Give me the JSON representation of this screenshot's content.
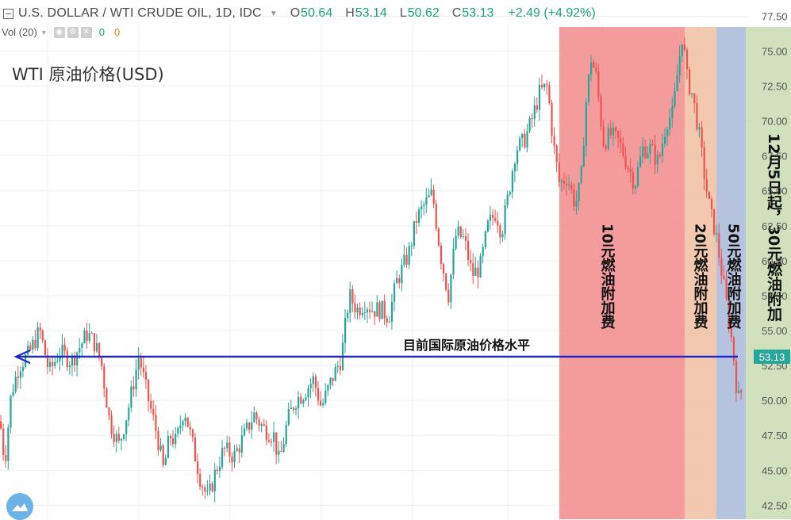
{
  "header": {
    "symbol": "U.S. DOLLAR / WTI CRUDE OIL, 1D, IDC",
    "o_label": "O",
    "o_value": "50.64",
    "h_label": "H",
    "h_value": "53.14",
    "l_label": "L",
    "l_value": "50.62",
    "c_label": "C",
    "c_value": "53.13",
    "change": "+2.49 (+4.92%)"
  },
  "volume": {
    "label": "Vol (20)",
    "v1": "0",
    "v2": "0"
  },
  "chart_title": "WTI 原油价格(USD)",
  "colors": {
    "up": "#26a69a",
    "down": "#ef5350",
    "line": "#1d27c9",
    "zone_10": "#f28b8b",
    "zone_20": "#f0bfa0",
    "zone_50": "#a9b9d9",
    "zone_30": "#c9dbb1",
    "price_tag": "#26a69a"
  },
  "chart_data": {
    "type": "candlestick",
    "title": "WTI 原油价格(USD)",
    "y_ticks": [
      "77.50",
      "75.00",
      "72.50",
      "70.00",
      "67.50",
      "65.00",
      "62.50",
      "60.00",
      "57.50",
      "55.00",
      "52.50",
      "50.00",
      "47.50",
      "45.00",
      "42.50"
    ],
    "ylim": [
      41.5,
      78.2
    ],
    "current_price": "53.13",
    "current_level": 53.13,
    "reference_line_label": "目前国际原油价格水平",
    "zones": [
      {
        "label": "10元燃油附加费",
        "color_key": "zone_10"
      },
      {
        "label": "20元燃油附加费",
        "color_key": "zone_20"
      },
      {
        "label": "50元燃油附加费",
        "color_key": "zone_50"
      },
      {
        "label": "12月5日起，30元燃油附加",
        "color_key": "zone_30"
      }
    ],
    "price_path": [
      [
        0,
        48.5
      ],
      [
        6,
        45.5
      ],
      [
        14,
        50.5
      ],
      [
        24,
        52.5
      ],
      [
        36,
        53.3
      ],
      [
        50,
        55.0
      ],
      [
        62,
        52.0
      ],
      [
        75,
        53.5
      ],
      [
        90,
        52.8
      ],
      [
        110,
        54.8
      ],
      [
        120,
        54.0
      ],
      [
        128,
        52.5
      ],
      [
        138,
        48.5
      ],
      [
        150,
        46.8
      ],
      [
        162,
        49.5
      ],
      [
        175,
        53.2
      ],
      [
        185,
        50.5
      ],
      [
        198,
        47.5
      ],
      [
        206,
        45.0
      ],
      [
        214,
        47.5
      ],
      [
        222,
        47.0
      ],
      [
        232,
        49.5
      ],
      [
        240,
        47.5
      ],
      [
        252,
        44.5
      ],
      [
        262,
        42.9
      ],
      [
        272,
        45.0
      ],
      [
        282,
        46.5
      ],
      [
        295,
        46.0
      ],
      [
        308,
        47.5
      ],
      [
        320,
        49.0
      ],
      [
        332,
        48.0
      ],
      [
        345,
        47.5
      ],
      [
        352,
        45.5
      ],
      [
        362,
        48.5
      ],
      [
        372,
        50.0
      ],
      [
        382,
        50.5
      ],
      [
        395,
        51.5
      ],
      [
        405,
        49.5
      ],
      [
        418,
        51.5
      ],
      [
        430,
        53.0
      ],
      [
        440,
        57.5
      ],
      [
        450,
        56.5
      ],
      [
        460,
        57.0
      ],
      [
        470,
        56.5
      ],
      [
        480,
        56.5
      ],
      [
        490,
        56.0
      ],
      [
        500,
        58.5
      ],
      [
        515,
        60.5
      ],
      [
        525,
        63.0
      ],
      [
        535,
        64.0
      ],
      [
        545,
        64.8
      ],
      [
        555,
        60.5
      ],
      [
        565,
        57.5
      ],
      [
        575,
        62.0
      ],
      [
        585,
        61.5
      ],
      [
        595,
        59.0
      ],
      [
        605,
        59.5
      ],
      [
        615,
        62.5
      ],
      [
        625,
        63.5
      ],
      [
        632,
        62.0
      ],
      [
        640,
        64.5
      ],
      [
        650,
        68.0
      ],
      [
        660,
        68.5
      ],
      [
        670,
        70.0
      ],
      [
        680,
        72.0
      ],
      [
        690,
        72.5
      ],
      [
        697,
        68.5
      ],
      [
        705,
        65.5
      ],
      [
        715,
        66.0
      ],
      [
        725,
        64.0
      ],
      [
        732,
        65.5
      ],
      [
        738,
        71.0
      ],
      [
        745,
        74.5
      ],
      [
        752,
        73.0
      ],
      [
        760,
        68.5
      ],
      [
        770,
        69.0
      ],
      [
        780,
        68.5
      ],
      [
        790,
        67.0
      ],
      [
        800,
        65.5
      ],
      [
        810,
        68.0
      ],
      [
        820,
        68.0
      ],
      [
        830,
        67.0
      ],
      [
        840,
        70.0
      ],
      [
        848,
        70.5
      ],
      [
        855,
        74.0
      ],
      [
        860,
        76.2
      ],
      [
        866,
        73.0
      ],
      [
        872,
        72.0
      ],
      [
        880,
        69.5
      ],
      [
        888,
        66.0
      ],
      [
        895,
        63.5
      ],
      [
        902,
        62.0
      ],
      [
        910,
        59.0
      ],
      [
        918,
        56.0
      ],
      [
        924,
        53.5
      ],
      [
        930,
        50.0
      ],
      [
        937,
        51.0
      ]
    ]
  }
}
